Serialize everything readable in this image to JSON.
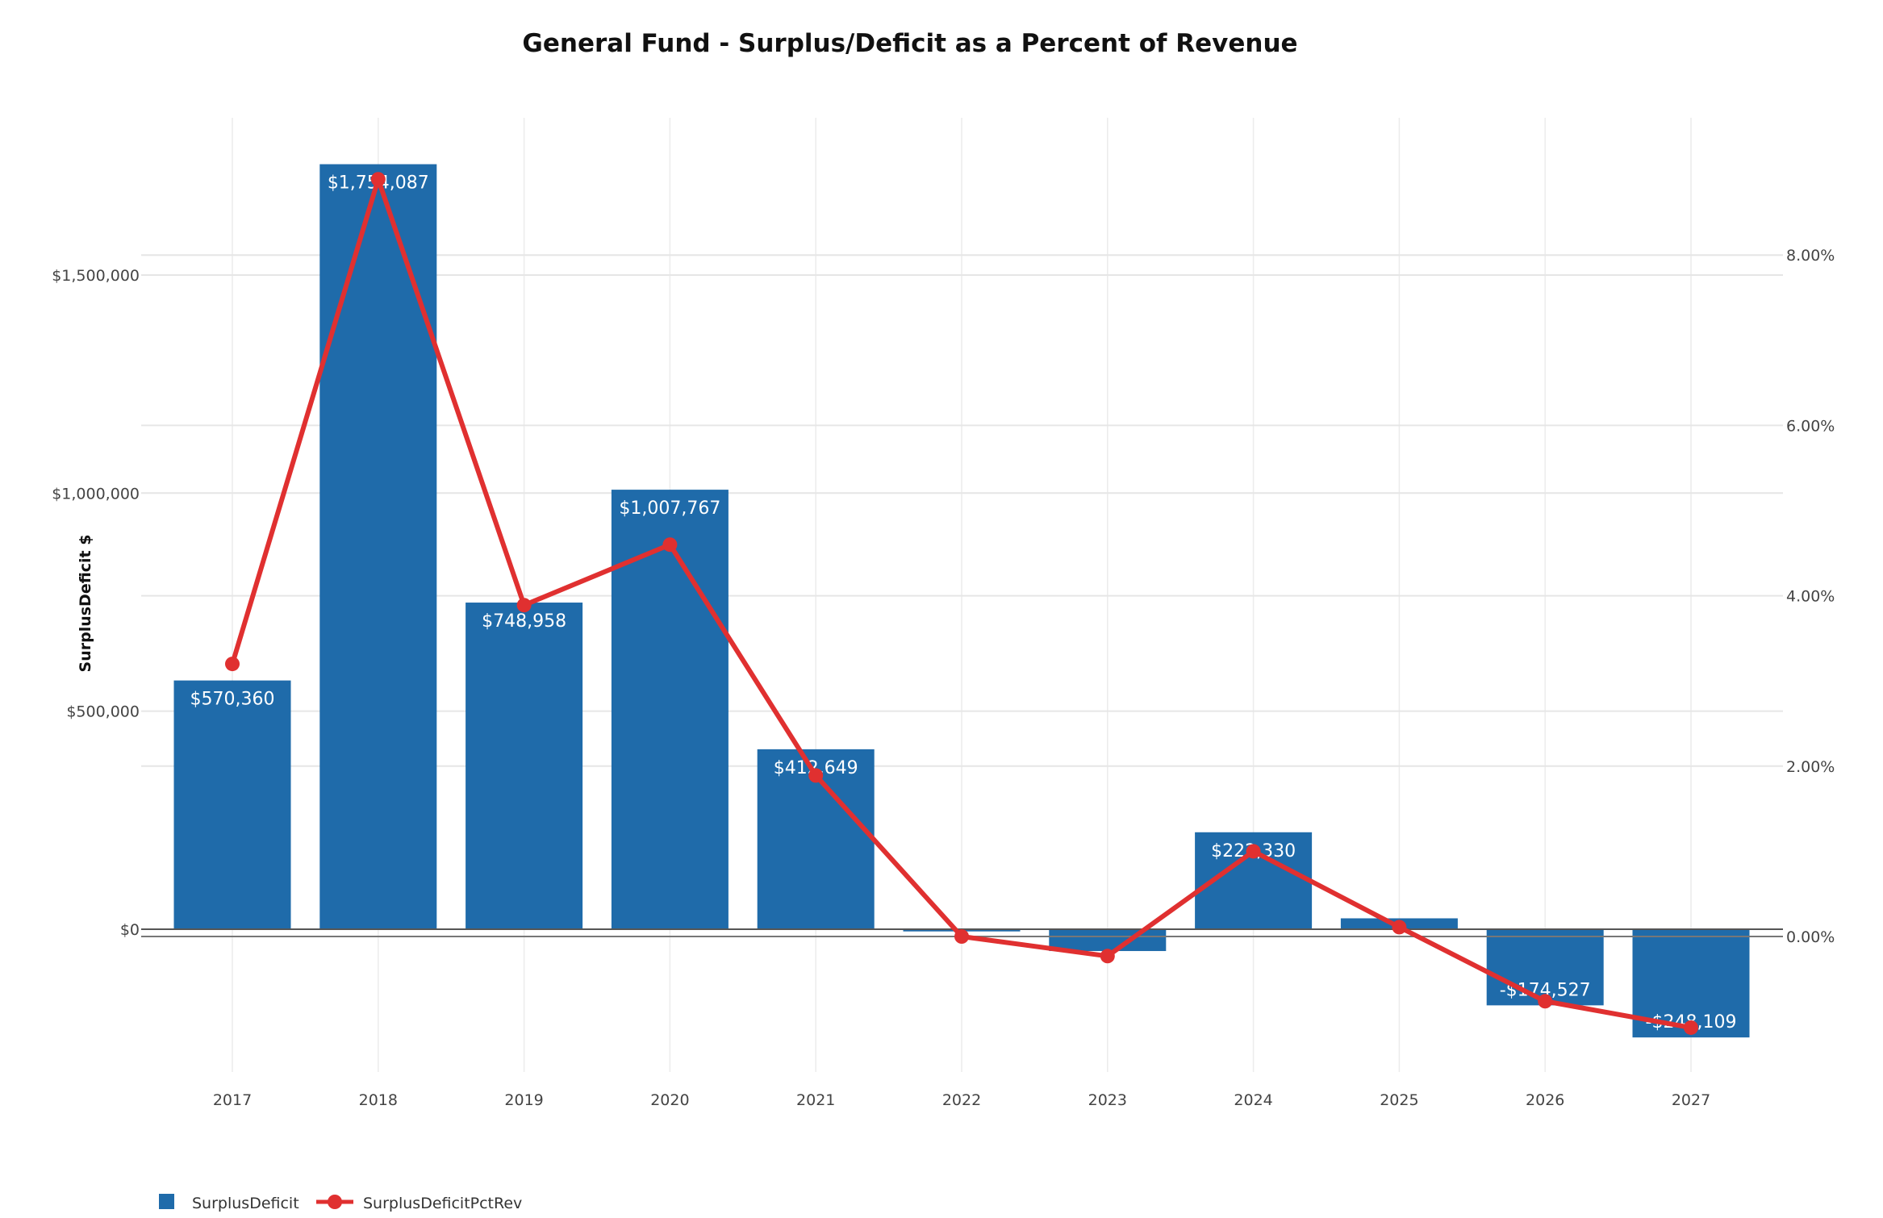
{
  "chart_data": {
    "type": "bar",
    "title": "General Fund - Surplus/Deficit as a Percent of Revenue",
    "xlabel": "",
    "ylabel": "SurplusDeficit $",
    "y2label": "",
    "categories": [
      "2017",
      "2018",
      "2019",
      "2020",
      "2021",
      "2022",
      "2023",
      "2024",
      "2025",
      "2026",
      "2027"
    ],
    "series": [
      {
        "name": "SurplusDeficit",
        "type": "bar",
        "axis": "left",
        "color": "#1F6BAA",
        "values": [
          570360,
          1754087,
          748958,
          1007767,
          412649,
          -5000,
          -50000,
          222330,
          25000,
          -174527,
          -248109
        ],
        "data_labels": [
          "$570,360",
          "$1,754,087",
          "$748,958",
          "$1,007,767",
          "$412,649",
          "",
          "",
          "$222,330",
          "",
          "-$174,527",
          "-$248,109"
        ]
      },
      {
        "name": "SurplusDeficitPctRev",
        "type": "line",
        "axis": "right",
        "color": "#E03030",
        "values": [
          3.2,
          8.89,
          3.89,
          4.6,
          1.89,
          0.0,
          -0.23,
          1.0,
          0.11,
          -0.76,
          -1.07
        ]
      }
    ],
    "y_axis_left": {
      "ticks": [
        0,
        500000,
        1000000,
        1500000
      ],
      "tick_labels": [
        "$0",
        "$500,000",
        "$1,000,000",
        "$1,500,000"
      ],
      "range": [
        -340000,
        2120000
      ]
    },
    "y_axis_right": {
      "ticks": [
        0,
        2,
        4,
        6,
        8
      ],
      "tick_labels": [
        "0.00%",
        "2.00%",
        "4.00%",
        "6.00%",
        "8.00%"
      ],
      "range": [
        -1.6,
        9.7
      ]
    },
    "grid": true,
    "legend": {
      "position": "bottom-left",
      "items": [
        {
          "label": "SurplusDeficit",
          "marker": "square",
          "color": "#1F6BAA"
        },
        {
          "label": "SurplusDeficitPctRev",
          "marker": "line-dot",
          "color": "#E03030"
        }
      ]
    }
  }
}
